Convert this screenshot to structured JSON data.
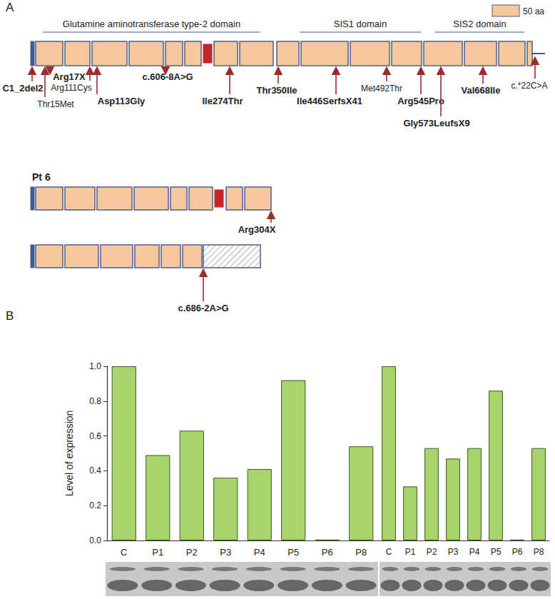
{
  "chart_data": [
    {
      "type": "bar",
      "categories": [
        "C",
        "P1",
        "P2",
        "P3",
        "P4",
        "P5",
        "P6",
        "P8"
      ],
      "values": [
        1.0,
        0.49,
        0.63,
        0.36,
        0.41,
        0.92,
        0.005,
        0.54
      ],
      "color": "#a8d46e",
      "ylabel": "Level of expression",
      "ylim": [
        0,
        1.0
      ],
      "yticks": [
        {
          "value": 0,
          "label": "0.0"
        },
        0.2,
        0.4,
        0.6,
        0.8,
        {
          "value": 1.0,
          "label": "1.0"
        }
      ],
      "grid": false
    },
    {
      "type": "bar",
      "categories": [
        "C",
        "P1",
        "P2",
        "P3",
        "P4",
        "P5",
        "P6",
        "P8"
      ],
      "values": [
        1.0,
        0.31,
        0.53,
        0.47,
        0.53,
        0.86,
        0.005,
        0.53
      ],
      "color": "#a8d46e",
      "ylim": [
        0,
        1.0
      ],
      "yticks": [
        {
          "value": 0,
          "label": "0.0"
        },
        0.2,
        0.4,
        0.6,
        0.8,
        {
          "value": 1.0,
          "label": "1.0"
        }
      ],
      "grid": false,
      "tick_labels": "x"
    }
  ],
  "diagram": {
    "panel_labels": [
      "A",
      "B"
    ],
    "scale_label": "50 aa",
    "domains": [
      "Glutamine aminotransferase type-2 domain",
      "SIS1 domain",
      "SIS2 domain"
    ],
    "full_protein_mutations": [
      "C1_2del2",
      "Thr15Met",
      "Arg17X",
      "Arg111Cys",
      "Asp113Gly",
      "c.606-8A>G",
      "Ile274Thr",
      "Thr350Ile",
      "Ile446SerfsX41",
      "Met492Thr",
      "Arg545Pro",
      "Gly573LeufsX9",
      "Val668Ile",
      "c.*22C>A"
    ],
    "patient_label": "Pt 6",
    "patient_mutations": [
      "Arg304X",
      "c.686-2A>G"
    ]
  }
}
